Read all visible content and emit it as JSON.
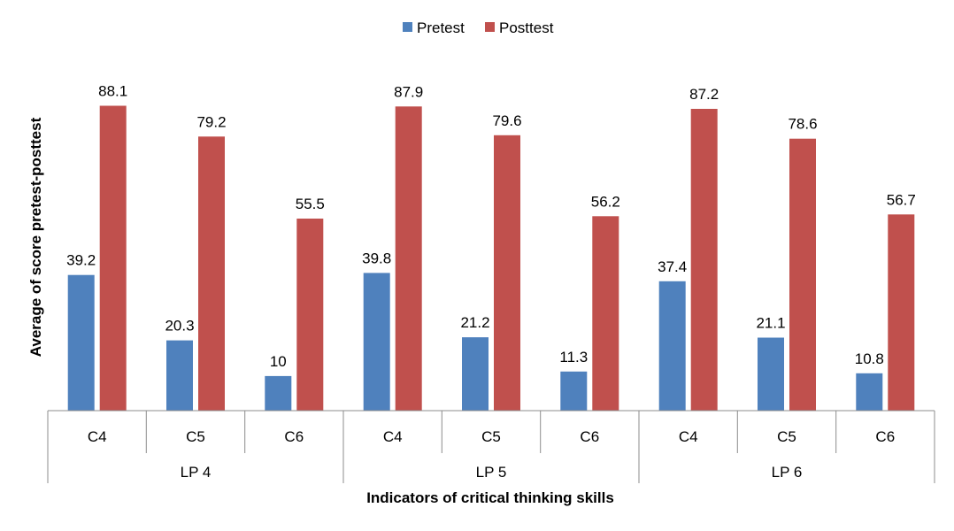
{
  "chart_data": {
    "type": "bar",
    "groups": [
      {
        "label": "LP 4",
        "categories": [
          "C4",
          "C5",
          "C6"
        ]
      },
      {
        "label": "LP 5",
        "categories": [
          "C4",
          "C5",
          "C6"
        ]
      },
      {
        "label": "LP 6",
        "categories": [
          "C4",
          "C5",
          "C6"
        ]
      }
    ],
    "series": [
      {
        "name": "Pretest",
        "color": "#4f81bd",
        "values": [
          39.2,
          20.3,
          10,
          39.8,
          21.2,
          11.3,
          37.4,
          21.1,
          10.8
        ]
      },
      {
        "name": "Posttest",
        "color": "#c0504d",
        "values": [
          88.1,
          79.2,
          55.5,
          87.9,
          79.6,
          56.2,
          87.2,
          78.6,
          56.7
        ]
      }
    ],
    "xlabel": "Indicators of critical thinking skills",
    "ylabel": "Average of score pretest-posttest",
    "ylim": [
      0,
      100
    ],
    "grid": false,
    "legend": "top-center",
    "data_labels": true
  }
}
